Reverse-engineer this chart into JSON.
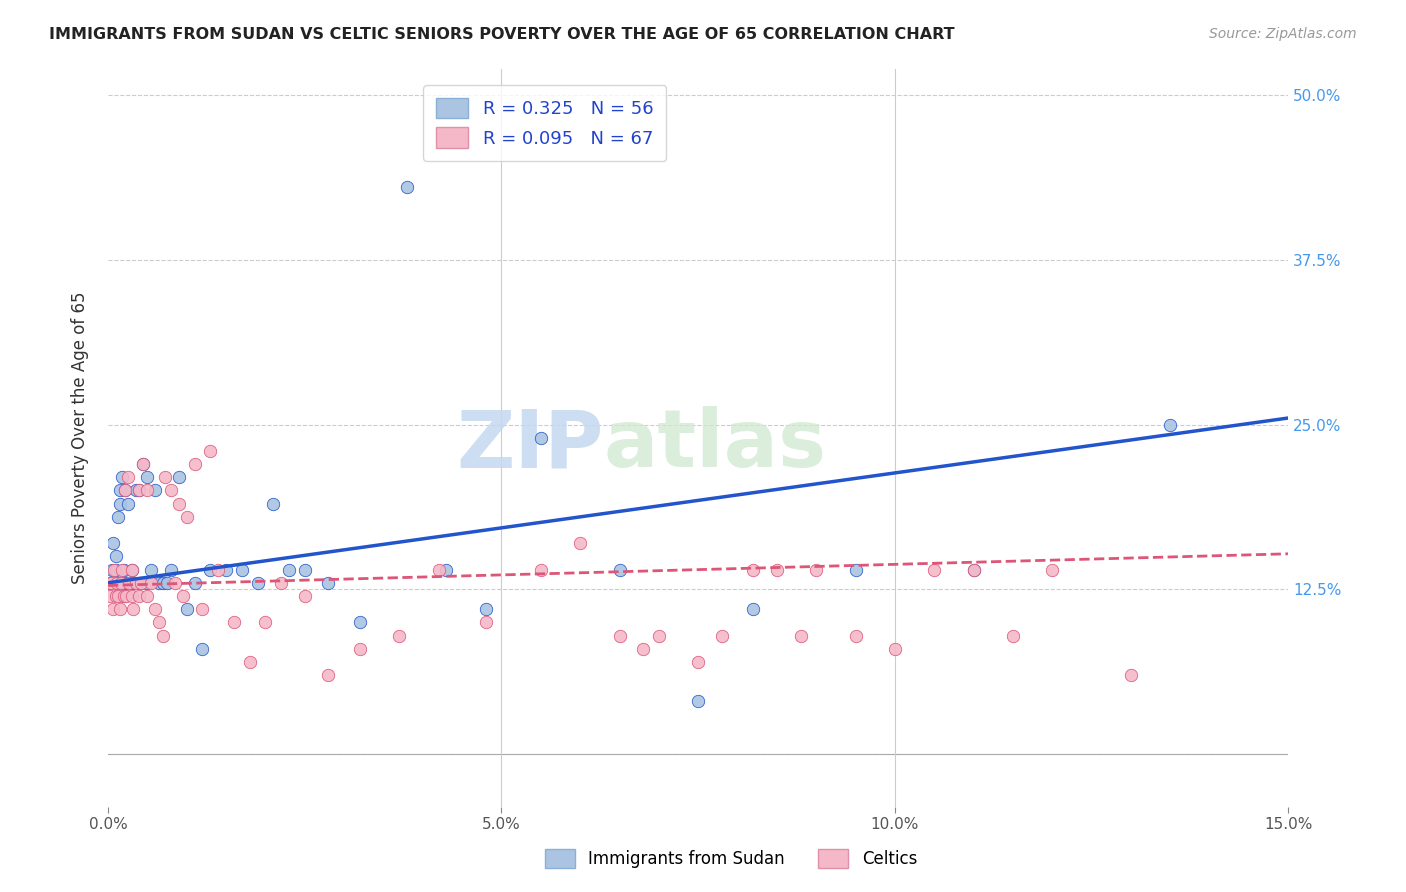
{
  "title": "IMMIGRANTS FROM SUDAN VS CELTIC SENIORS POVERTY OVER THE AGE OF 65 CORRELATION CHART",
  "source": "Source: ZipAtlas.com",
  "ylabel_label": "Seniors Poverty Over the Age of 65",
  "xlim": [
    0.0,
    0.15
  ],
  "ylim": [
    -0.04,
    0.52
  ],
  "blue_R": 0.325,
  "blue_N": 56,
  "pink_R": 0.095,
  "pink_N": 67,
  "blue_color": "#aac4e2",
  "blue_line_color": "#2255cc",
  "pink_color": "#f5b8c8",
  "pink_line_color": "#dd5577",
  "background_color": "#ffffff",
  "watermark_zip": "ZIP",
  "watermark_atlas": "atlas",
  "grid_yticks": [
    0.0,
    0.125,
    0.25,
    0.375,
    0.5
  ],
  "xticks": [
    0.0,
    0.05,
    0.1,
    0.15
  ],
  "legend_label1": "Immigrants from Sudan",
  "legend_label2": "Celtics",
  "blue_scatter_x": [
    0.0003,
    0.0005,
    0.0007,
    0.001,
    0.001,
    0.0012,
    0.0013,
    0.0015,
    0.0015,
    0.0017,
    0.0018,
    0.002,
    0.002,
    0.0022,
    0.0023,
    0.0025,
    0.0027,
    0.003,
    0.003,
    0.0032,
    0.0035,
    0.004,
    0.004,
    0.0042,
    0.0045,
    0.005,
    0.005,
    0.0055,
    0.006,
    0.0065,
    0.007,
    0.0075,
    0.008,
    0.009,
    0.01,
    0.011,
    0.012,
    0.013,
    0.015,
    0.017,
    0.019,
    0.021,
    0.023,
    0.025,
    0.028,
    0.032,
    0.038,
    0.043,
    0.048,
    0.055,
    0.065,
    0.075,
    0.082,
    0.095,
    0.11,
    0.135
  ],
  "blue_scatter_y": [
    0.13,
    0.14,
    0.16,
    0.15,
    0.14,
    0.13,
    0.18,
    0.2,
    0.19,
    0.13,
    0.21,
    0.14,
    0.12,
    0.2,
    0.13,
    0.19,
    0.13,
    0.14,
    0.13,
    0.13,
    0.2,
    0.13,
    0.2,
    0.13,
    0.22,
    0.21,
    0.13,
    0.14,
    0.2,
    0.13,
    0.13,
    0.13,
    0.14,
    0.21,
    0.11,
    0.13,
    0.08,
    0.14,
    0.14,
    0.14,
    0.13,
    0.19,
    0.14,
    0.14,
    0.13,
    0.1,
    0.43,
    0.14,
    0.11,
    0.24,
    0.14,
    0.04,
    0.11,
    0.14,
    0.14,
    0.25
  ],
  "pink_scatter_x": [
    0.0002,
    0.0004,
    0.0006,
    0.0008,
    0.001,
    0.0012,
    0.0013,
    0.0015,
    0.0016,
    0.0018,
    0.002,
    0.0022,
    0.0023,
    0.0025,
    0.0027,
    0.003,
    0.003,
    0.0032,
    0.0035,
    0.004,
    0.004,
    0.0042,
    0.0045,
    0.005,
    0.005,
    0.0055,
    0.006,
    0.0065,
    0.007,
    0.0072,
    0.008,
    0.0085,
    0.009,
    0.0095,
    0.01,
    0.011,
    0.012,
    0.013,
    0.014,
    0.016,
    0.018,
    0.02,
    0.022,
    0.025,
    0.028,
    0.032,
    0.037,
    0.042,
    0.048,
    0.055,
    0.06,
    0.065,
    0.068,
    0.07,
    0.075,
    0.078,
    0.082,
    0.085,
    0.088,
    0.09,
    0.095,
    0.1,
    0.105,
    0.11,
    0.115,
    0.12,
    0.13
  ],
  "pink_scatter_y": [
    0.12,
    0.13,
    0.11,
    0.14,
    0.12,
    0.13,
    0.12,
    0.11,
    0.13,
    0.14,
    0.12,
    0.2,
    0.12,
    0.21,
    0.13,
    0.14,
    0.12,
    0.11,
    0.13,
    0.2,
    0.12,
    0.13,
    0.22,
    0.2,
    0.12,
    0.13,
    0.11,
    0.1,
    0.09,
    0.21,
    0.2,
    0.13,
    0.19,
    0.12,
    0.18,
    0.22,
    0.11,
    0.23,
    0.14,
    0.1,
    0.07,
    0.1,
    0.13,
    0.12,
    0.06,
    0.08,
    0.09,
    0.14,
    0.1,
    0.14,
    0.16,
    0.09,
    0.08,
    0.09,
    0.07,
    0.09,
    0.14,
    0.14,
    0.09,
    0.14,
    0.09,
    0.08,
    0.14,
    0.14,
    0.09,
    0.14,
    0.06
  ]
}
